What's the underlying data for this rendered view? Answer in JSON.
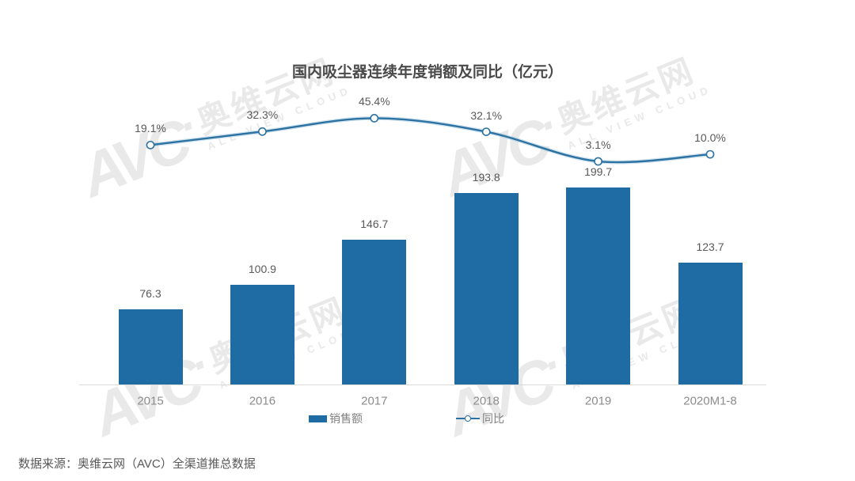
{
  "title": "国内吸尘器连续年度销额及同比（亿元）",
  "source_note": "数据来源：奥维云网（AVC）全渠道推总数据",
  "legend": {
    "bar_label": "销售额",
    "line_label": "同比"
  },
  "watermark": {
    "logo": "AVC",
    "dot": "·",
    "name": "奥维云网",
    "subtitle": "ALL VIEW CLOUD"
  },
  "colors": {
    "bar": "#1F6CA5",
    "line": "#2C72A3",
    "line_glow": "#AACBDE",
    "marker_fill": "#FFFFFF",
    "value_label": "#595959",
    "axis_label": "#8C8C8C",
    "legend_label": "#808080",
    "axis_line": "#DCDCDC",
    "title": "#4A4A4A",
    "watermark": "#E9E9E9"
  },
  "chart_data": {
    "type": "bar",
    "subtype": "bar-line-combo",
    "title": "国内吸尘器连续年度销额及同比（亿元）",
    "categories": [
      "2015",
      "2016",
      "2017",
      "2018",
      "2019",
      "2020M1-8"
    ],
    "series": [
      {
        "name": "销售额",
        "type": "bar",
        "unit": "亿元",
        "values": [
          76.3,
          100.9,
          146.7,
          193.8,
          199.7,
          123.7
        ]
      },
      {
        "name": "同比",
        "type": "line",
        "unit": "%",
        "values": [
          19.1,
          32.3,
          45.4,
          32.1,
          3.1,
          10.0
        ]
      }
    ],
    "value_labels_visible": true,
    "axes": {
      "x_visible": true,
      "y_visible": false,
      "gridlines": false
    },
    "legend_position": "bottom"
  }
}
